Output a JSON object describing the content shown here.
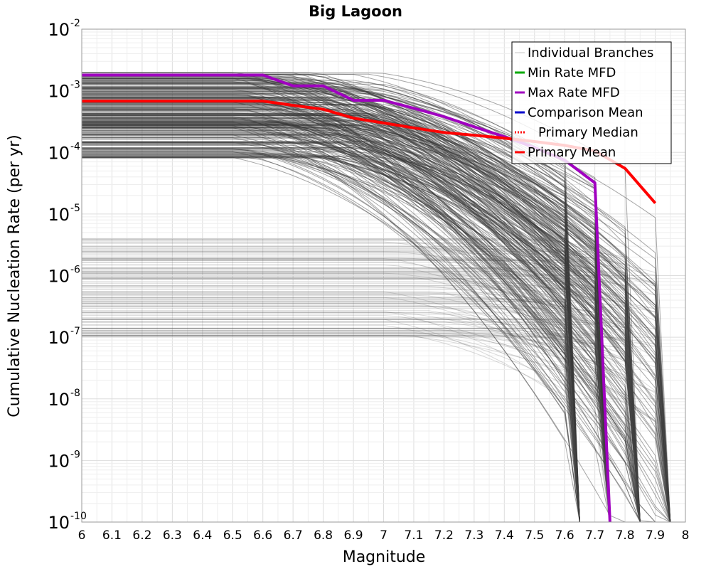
{
  "chart_data": {
    "type": "line",
    "title": "Big Lagoon",
    "xlabel": "Magnitude",
    "ylabel": "Cumulative Nucleation Rate (per yr)",
    "xlim": [
      6,
      8
    ],
    "ylim": [
      1e-10,
      0.01
    ],
    "yscale": "log",
    "grid": true,
    "legend_position": "top-right",
    "x_ticks": [
      "6",
      "6.1",
      "6.2",
      "6.3",
      "6.4",
      "6.5",
      "6.6",
      "6.7",
      "6.8",
      "6.9",
      "7",
      "7.1",
      "7.2",
      "7.3",
      "7.4",
      "7.5",
      "7.6",
      "7.7",
      "7.8",
      "7.9",
      "8"
    ],
    "y_ticks": [
      {
        "base": "10",
        "exp": "-2",
        "value": 0.01
      },
      {
        "base": "10",
        "exp": "-3",
        "value": 0.001
      },
      {
        "base": "10",
        "exp": "-4",
        "value": 0.0001
      },
      {
        "base": "10",
        "exp": "-5",
        "value": 1e-05
      },
      {
        "base": "10",
        "exp": "-6",
        "value": 1e-06
      },
      {
        "base": "10",
        "exp": "-7",
        "value": 1e-07
      },
      {
        "base": "10",
        "exp": "-8",
        "value": 1e-08
      },
      {
        "base": "10",
        "exp": "-9",
        "value": 1e-09
      },
      {
        "base": "10",
        "exp": "-10",
        "value": 1e-10
      }
    ],
    "series": [
      {
        "name": "Individual Branches",
        "color": "#555555",
        "style": "thin",
        "approximate": true,
        "count": 400,
        "rate_band_high": [
          8e-05,
          0.002
        ],
        "rate_band_low": [
          1e-07,
          4e-06
        ],
        "max_magnitudes": [
          7.65,
          7.75,
          7.85,
          7.95
        ]
      },
      {
        "name": "Min Rate MFD",
        "color": "#00aa00",
        "x": [],
        "y": []
      },
      {
        "name": "Max Rate MFD",
        "color": "#a000c0",
        "x": [
          6.0,
          6.6,
          6.7,
          6.8,
          6.9,
          7.0,
          7.1,
          7.2,
          7.3,
          7.4,
          7.5,
          7.6,
          7.7,
          7.75
        ],
        "y": [
          0.0018,
          0.0018,
          0.0012,
          0.0012,
          0.0007,
          0.0007,
          0.00052,
          0.00038,
          0.00026,
          0.00018,
          0.00012,
          7.5e-05,
          3.2e-05,
          1e-10
        ]
      },
      {
        "name": "Comparison Mean",
        "color": "#0000cc",
        "x": [],
        "y": []
      },
      {
        "name": "Primary Median",
        "color": "#ff0000",
        "dashed": true,
        "x": [
          6.0,
          6.6,
          6.7,
          6.8,
          6.9,
          7.0,
          7.2,
          7.4,
          7.6,
          7.7,
          7.8,
          7.9
        ],
        "y": [
          0.00068,
          0.00068,
          0.00058,
          0.0005,
          0.00036,
          0.0003,
          0.00021,
          0.00017,
          0.00013,
          0.000105,
          5.5e-05,
          1.5e-05
        ]
      },
      {
        "name": "Primary Mean",
        "color": "#ff0000",
        "x": [
          6.0,
          6.6,
          6.7,
          6.8,
          6.9,
          7.0,
          7.1,
          7.2,
          7.3,
          7.4,
          7.5,
          7.6,
          7.7,
          7.8,
          7.9
        ],
        "y": [
          0.00068,
          0.00068,
          0.00058,
          0.0005,
          0.00036,
          0.0003,
          0.00025,
          0.00021,
          0.00019,
          0.00017,
          0.00015,
          0.00013,
          0.000105,
          5.5e-05,
          1.5e-05
        ]
      }
    ]
  }
}
